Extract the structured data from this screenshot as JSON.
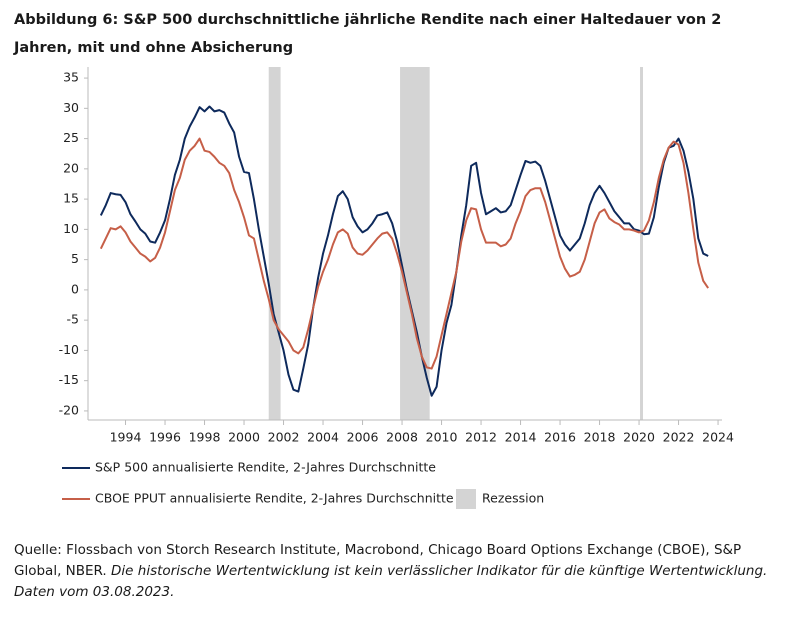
{
  "chart_data": {
    "type": "line",
    "title": "Abbildung 6: S&P 500 durchschnittliche jährliche Rendite nach einer Haltedauer von 2 Jahren, mit und ohne Absicherung",
    "source": "Quelle: Flossbach von Storch Research Institute, Macrobond, Chicago Board Options Exchange (CBOE), S&P Global, NBER.",
    "disclaimer": "Die historische Wertentwicklung ist kein verlässlicher Indikator für die künftige Wertentwicklung. Daten vom 03.08.2023.",
    "xlim": [
      1992.1,
      2024.2
    ],
    "xticks": [
      1994,
      1996,
      1998,
      2000,
      2002,
      2004,
      2006,
      2008,
      2010,
      2012,
      2014,
      2016,
      2018,
      2020,
      2022,
      2024
    ],
    "ylim": [
      -21.5,
      36.5
    ],
    "yticks": [
      -20,
      -15,
      -10,
      -5,
      0,
      5,
      10,
      15,
      20,
      25,
      30,
      35
    ],
    "recessions": {
      "name": "Rezession",
      "color": "#d4d4d4",
      "periods": [
        [
          2001.25,
          2001.85
        ],
        [
          2007.9,
          2009.4
        ],
        [
          2020.05,
          2020.2
        ]
      ]
    },
    "x": [
      1992.75,
      1993,
      1993.25,
      1993.5,
      1993.75,
      1994,
      1994.25,
      1994.5,
      1994.75,
      1995,
      1995.25,
      1995.5,
      1995.75,
      1996,
      1996.25,
      1996.5,
      1996.75,
      1997,
      1997.25,
      1997.5,
      1997.75,
      1998,
      1998.25,
      1998.5,
      1998.75,
      1999,
      1999.25,
      1999.5,
      1999.75,
      2000,
      2000.25,
      2000.5,
      2000.75,
      2001,
      2001.25,
      2001.5,
      2001.75,
      2002,
      2002.25,
      2002.5,
      2002.75,
      2003,
      2003.25,
      2003.5,
      2003.75,
      2004,
      2004.25,
      2004.5,
      2004.75,
      2005,
      2005.25,
      2005.5,
      2005.75,
      2006,
      2006.25,
      2006.5,
      2006.75,
      2007,
      2007.25,
      2007.5,
      2007.75,
      2008,
      2008.25,
      2008.5,
      2008.75,
      2009,
      2009.25,
      2009.5,
      2009.75,
      2010,
      2010.25,
      2010.5,
      2010.75,
      2011,
      2011.25,
      2011.5,
      2011.75,
      2012,
      2012.25,
      2012.5,
      2012.75,
      2013,
      2013.25,
      2013.5,
      2013.75,
      2014,
      2014.25,
      2014.5,
      2014.75,
      2015,
      2015.25,
      2015.5,
      2015.75,
      2016,
      2016.25,
      2016.5,
      2016.75,
      2017,
      2017.25,
      2017.5,
      2017.75,
      2018,
      2018.25,
      2018.5,
      2018.75,
      2019,
      2019.25,
      2019.5,
      2019.75,
      2020,
      2020.25,
      2020.5,
      2020.75,
      2021,
      2021.25,
      2021.5,
      2021.75,
      2022,
      2022.25,
      2022.5,
      2022.75,
      2023,
      2023.25,
      2023.5
    ],
    "series": [
      {
        "name": "S&P 500 annualisierte Rendite, 2-Jahres Durchschnitte",
        "color": "#0e2a5c",
        "values": [
          12.3,
          14,
          16,
          15.8,
          15.7,
          14.5,
          12.5,
          11.3,
          10,
          9.3,
          8,
          7.8,
          9.5,
          11.5,
          15,
          19,
          21.5,
          25,
          27,
          28.5,
          30.2,
          29.5,
          30.3,
          29.5,
          29.7,
          29.3,
          27.5,
          26,
          22,
          19.5,
          19.3,
          15,
          10,
          5.5,
          1,
          -4,
          -7,
          -10,
          -14,
          -16.5,
          -16.8,
          -13,
          -9,
          -3,
          2,
          6,
          9,
          12.5,
          15.5,
          16.3,
          15,
          12,
          10.5,
          9.5,
          10,
          11,
          12.3,
          12.5,
          12.8,
          11,
          8,
          4,
          0,
          -3.5,
          -7,
          -11,
          -14.5,
          -17.5,
          -16,
          -10,
          -5.5,
          -2.5,
          3,
          9,
          14,
          20.5,
          21,
          16,
          12.5,
          13,
          13.5,
          12.8,
          13,
          14,
          16.5,
          19,
          21.3,
          21,
          21.2,
          20.5,
          18,
          15,
          12,
          9,
          7.5,
          6.5,
          7.5,
          8.5,
          11,
          14,
          16,
          17.2,
          16,
          14.5,
          13,
          12,
          11,
          11,
          10,
          9.8,
          9.2,
          9.3,
          12,
          17,
          21,
          23.5,
          23.8,
          25,
          23,
          19.5,
          15,
          8.5,
          6,
          5.6
        ]
      },
      {
        "name": "CBOE PPUT annualisierte Rendite, 2-Jahres Durchschnitte",
        "color": "#c65f48",
        "values": [
          6.8,
          8.5,
          10.2,
          10,
          10.5,
          9.5,
          8,
          7,
          6,
          5.5,
          4.7,
          5.3,
          7,
          9.5,
          13,
          16.5,
          18.5,
          21.5,
          23,
          23.8,
          25,
          23,
          22.8,
          22,
          21,
          20.5,
          19.3,
          16.5,
          14.5,
          12,
          9,
          8.5,
          5,
          1.5,
          -1.5,
          -5,
          -6.5,
          -7.5,
          -8.5,
          -10,
          -10.5,
          -9.5,
          -6.5,
          -3,
          0.5,
          3,
          5,
          7.5,
          9.5,
          10,
          9.3,
          7,
          6,
          5.8,
          6.5,
          7.5,
          8.5,
          9.3,
          9.5,
          8.5,
          6,
          3,
          -0.5,
          -4,
          -8,
          -11,
          -12.8,
          -13,
          -11,
          -7.5,
          -4,
          -0.5,
          3,
          8,
          11.5,
          13.5,
          13.3,
          10,
          7.8,
          7.8,
          7.8,
          7.2,
          7.5,
          8.5,
          11,
          13,
          15.5,
          16.5,
          16.8,
          16.8,
          14.5,
          11.5,
          8.5,
          5.5,
          3.5,
          2.2,
          2.5,
          3,
          5,
          8,
          11,
          12.8,
          13.3,
          11.8,
          11.2,
          10.8,
          10,
          10,
          9.8,
          9.5,
          9.8,
          11.5,
          14.5,
          18.5,
          21.5,
          23.5,
          24.5,
          24,
          21,
          16,
          10,
          4.5,
          1.5,
          0.3
        ]
      }
    ]
  }
}
